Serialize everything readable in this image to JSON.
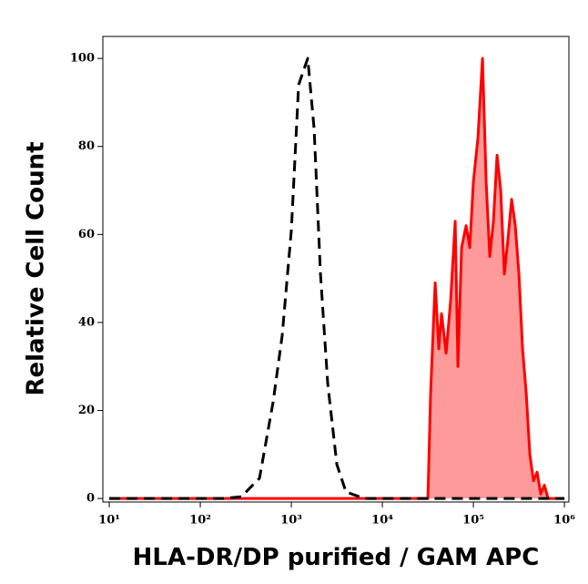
{
  "chart_data": {
    "type": "histogram-overlay",
    "xlabel": "HLA-DR/DP purified / GAM APC",
    "ylabel": "Relative Cell Count",
    "xscale": "log",
    "xlim": [
      8.5,
      1120000
    ],
    "ylim": [
      -0.8,
      105
    ],
    "xticks": [
      {
        "value": 10,
        "label": "10¹"
      },
      {
        "value": 100,
        "label": "10²"
      },
      {
        "value": 1000,
        "label": "10³"
      },
      {
        "value": 10000,
        "label": "10⁴"
      },
      {
        "value": 100000,
        "label": "10⁵"
      },
      {
        "value": 1000000,
        "label": "10⁶"
      }
    ],
    "yticks": [
      0,
      20,
      40,
      60,
      80,
      100
    ],
    "series": [
      {
        "color": "#000000",
        "dashed": true,
        "x": [
          10,
          178,
          282,
          447,
          631,
          794,
          1000,
          1202,
          1514,
          1778,
          2089,
          2512,
          3162,
          3981,
          6310,
          10000,
          1000000
        ],
        "values": [
          0,
          0,
          0.4,
          4.6,
          22,
          37,
          61,
          94,
          100,
          84,
          51,
          26,
          7.7,
          1.5,
          0,
          0,
          0
        ]
      },
      {
        "color": "#ff0000",
        "fill": "#ff9a9a",
        "dashed": false,
        "x": [
          10,
          31623,
          33884,
          38019,
          41687,
          44668,
          50119,
          56234,
          63096,
          67608,
          74131,
          83176,
          91201,
          100000,
          112202,
          125893,
          138038,
          151356,
          165959,
          181970,
          199526,
          218776,
          239883,
          263027,
          288403,
          316228,
          346737,
          380189,
          416869,
          457088,
          501187,
          549541,
          602560,
          660693,
          1000000
        ],
        "values": [
          0,
          0,
          24,
          49,
          34,
          42,
          33,
          45,
          63,
          30,
          57,
          62,
          57,
          72,
          82,
          100,
          72,
          55,
          63,
          78,
          70,
          51,
          59,
          68,
          62,
          51,
          34,
          24,
          10,
          4,
          6,
          1,
          3,
          0,
          0
        ]
      }
    ]
  }
}
